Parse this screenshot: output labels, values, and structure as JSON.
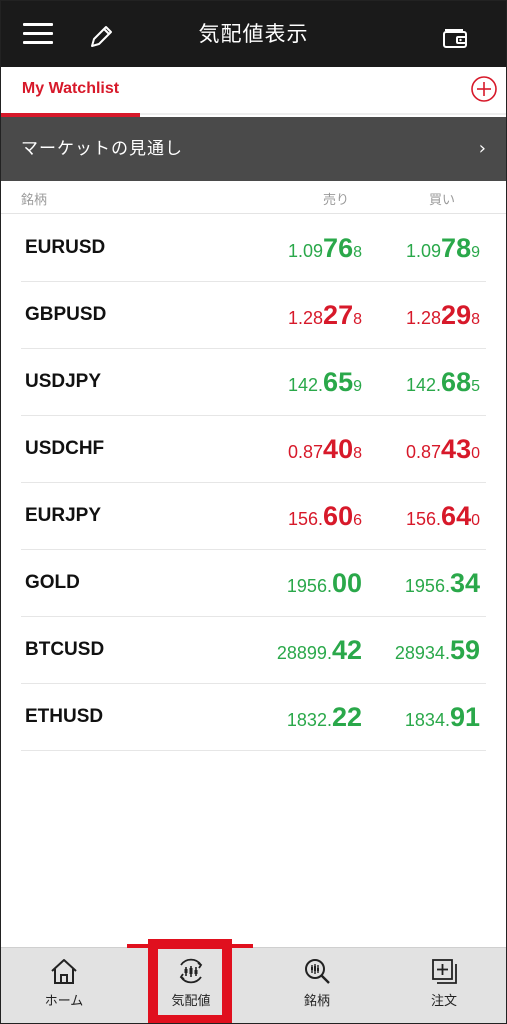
{
  "header": {
    "title": "気配値表示",
    "menu_icon": "hamburger-menu-icon",
    "edit_icon": "pencil-icon",
    "wallet_icon": "wallet-icon"
  },
  "tabs": {
    "active_label": "My Watchlist",
    "add_icon": "plus-circle-icon"
  },
  "market_banner": {
    "label": "マーケットの見通し",
    "chevron": "›"
  },
  "columns": {
    "name": "銘柄",
    "sell": "売り",
    "buy": "買い"
  },
  "quotes": [
    {
      "symbol": "EURUSD",
      "direction": "up",
      "sell": {
        "small": "1.09",
        "big": "76",
        "tail": "8"
      },
      "buy": {
        "small": "1.09",
        "big": "78",
        "tail": "9"
      }
    },
    {
      "symbol": "GBPUSD",
      "direction": "down",
      "sell": {
        "small": "1.28",
        "big": "27",
        "tail": "8"
      },
      "buy": {
        "small": "1.28",
        "big": "29",
        "tail": "8"
      }
    },
    {
      "symbol": "USDJPY",
      "direction": "up",
      "sell": {
        "small": "142.",
        "big": "65",
        "tail": "9"
      },
      "buy": {
        "small": "142.",
        "big": "68",
        "tail": "5"
      }
    },
    {
      "symbol": "USDCHF",
      "direction": "down",
      "sell": {
        "small": "0.87",
        "big": "40",
        "tail": "8"
      },
      "buy": {
        "small": "0.87",
        "big": "43",
        "tail": "0"
      }
    },
    {
      "symbol": "EURJPY",
      "direction": "down",
      "sell": {
        "small": "156.",
        "big": "60",
        "tail": "6"
      },
      "buy": {
        "small": "156.",
        "big": "64",
        "tail": "0"
      }
    },
    {
      "symbol": "GOLD",
      "direction": "up",
      "sell": {
        "small": "1956.",
        "big": "00",
        "tail": ""
      },
      "buy": {
        "small": "1956.",
        "big": "34",
        "tail": ""
      }
    },
    {
      "symbol": "BTCUSD",
      "direction": "up",
      "sell": {
        "small": "28899.",
        "big": "42",
        "tail": ""
      },
      "buy": {
        "small": "28934.",
        "big": "59",
        "tail": ""
      }
    },
    {
      "symbol": "ETHUSD",
      "direction": "up",
      "sell": {
        "small": "1832.",
        "big": "22",
        "tail": ""
      },
      "buy": {
        "small": "1834.",
        "big": "91",
        "tail": ""
      }
    }
  ],
  "bottom_nav": [
    {
      "label": "ホーム",
      "icon": "home-icon"
    },
    {
      "label": "気配値",
      "icon": "quotes-icon",
      "active": true
    },
    {
      "label": "銘柄",
      "icon": "symbol-search-icon"
    },
    {
      "label": "注文",
      "icon": "order-icon"
    }
  ],
  "colors": {
    "brand_red": "#d7192a",
    "up_green": "#2aa84a",
    "header_bg": "#1a1a1a",
    "banner_bg": "#4a4a4a",
    "highlight": "#e0101e"
  }
}
